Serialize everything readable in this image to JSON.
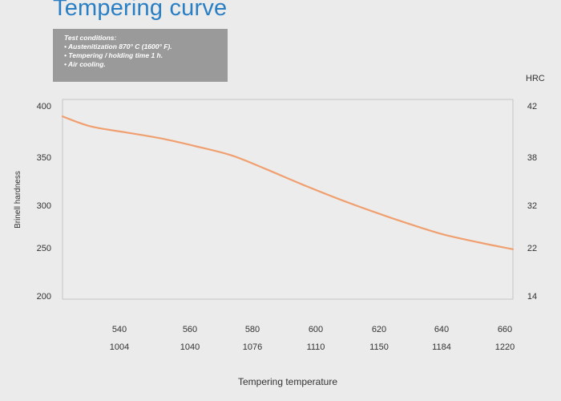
{
  "page": {
    "title": "Tempering curve",
    "conditions": [
      "Test conditions:",
      "• Austenitization 870° C (1600° F).",
      "• Tempering / holding time 1 h.",
      "• Air cooling."
    ]
  },
  "chart_data": {
    "type": "line",
    "title": "Tempering curve",
    "xlabel": "Tempering temperature",
    "ylabel": "Brinell hardness",
    "y2label": "HRC",
    "x_ticks_primary": [
      "540",
      "560",
      "580",
      "600",
      "620",
      "640",
      "660"
    ],
    "x_ticks_secondary": [
      "1004",
      "1040",
      "1076",
      "1110",
      "1150",
      "1184",
      "1220"
    ],
    "y_ticks": [
      "400",
      "350",
      "300",
      "250",
      "200"
    ],
    "y2_ticks": [
      "42",
      "38",
      "32",
      "22",
      "14"
    ],
    "xlim": [
      532,
      660
    ],
    "ylim": [
      200,
      400
    ],
    "grid": false,
    "line_color": "#f0a070",
    "series": [
      {
        "x": [
          532,
          540,
          550,
          560,
          570,
          580,
          590,
          600,
          610,
          620,
          630,
          640,
          650,
          660
        ],
        "y": [
          383,
          373,
          367,
          361,
          353,
          344,
          330,
          315,
          301,
          288,
          276,
          265,
          257,
          250
        ]
      }
    ]
  }
}
